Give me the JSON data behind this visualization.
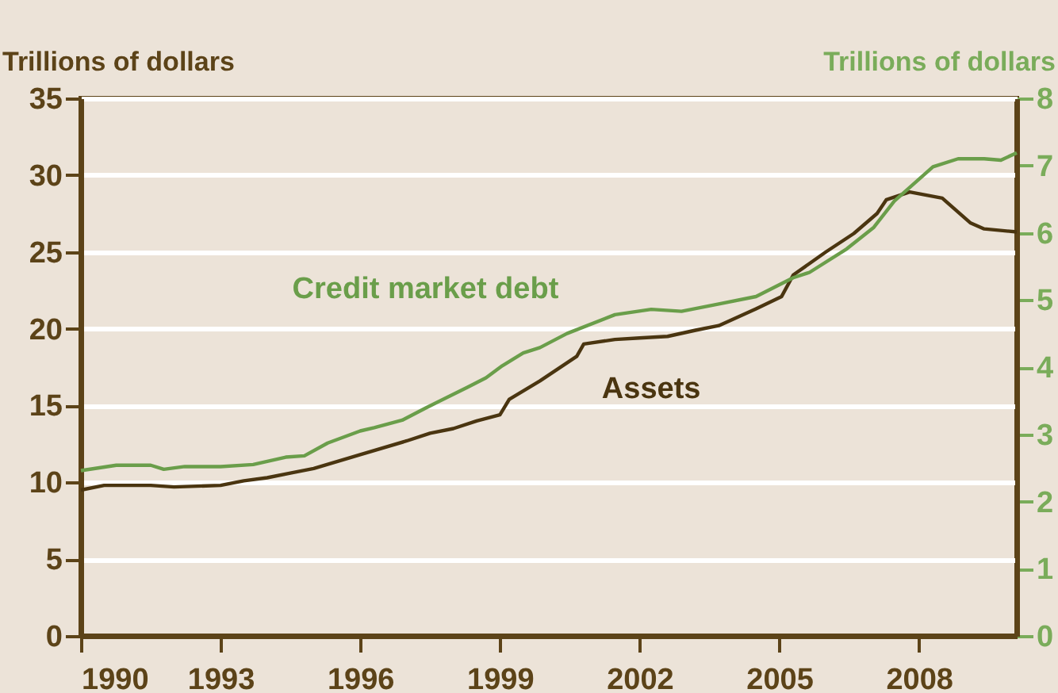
{
  "chart_data": {
    "type": "line",
    "ylabel": "Trillions of dollars",
    "y2label": "Trillions of dollars",
    "xlim": [
      1990,
      2010.1
    ],
    "xticks": [
      1990,
      1993,
      1996,
      1999,
      2002,
      2005,
      2008
    ],
    "ylim": [
      0,
      35
    ],
    "yticks": [
      0,
      5,
      10,
      15,
      20,
      25,
      30,
      35
    ],
    "y2lim": [
      0,
      8
    ],
    "y2ticks": [
      0,
      1,
      2,
      3,
      4,
      5,
      6,
      7,
      8
    ],
    "grid": "y",
    "series": [
      {
        "name": "Assets",
        "color": "#4a3510",
        "axis": "y",
        "x": [
          1990,
          1990.5,
          1991.5,
          1992,
          1993,
          1993.5,
          1994,
          1994.5,
          1995,
          1996,
          1997,
          1997.5,
          1998,
          1998.5,
          1999,
          1999.2,
          1999.86,
          2000.65,
          2000.8,
          2001.47,
          2002,
          2002.6,
          2003.2,
          2003.7,
          2004.5,
          2005.05,
          2005.3,
          2006,
          2006.6,
          2007.1,
          2007.3,
          2007.8,
          2008.5,
          2009.1,
          2009.4,
          2010.1
        ],
        "values": [
          9.5,
          9.8,
          9.8,
          9.7,
          9.8,
          10.1,
          10.3,
          10.6,
          10.9,
          11.8,
          12.7,
          13.2,
          13.5,
          14.0,
          14.4,
          15.4,
          16.6,
          18.2,
          19.0,
          19.3,
          19.4,
          19.5,
          19.9,
          20.2,
          21.3,
          22.1,
          23.5,
          25.0,
          26.2,
          27.5,
          28.4,
          28.9,
          28.5,
          26.9,
          26.5,
          26.3
        ]
      },
      {
        "name": "Credit market debt",
        "color": "#6a9e4a",
        "axis": "y2",
        "x": [
          1990,
          1990.76,
          1991.5,
          1991.78,
          1992.23,
          1993,
          1993.7,
          1994.4,
          1994.8,
          1995.3,
          1996,
          1996.3,
          1996.9,
          1997.4,
          1998.3,
          1998.7,
          1999.05,
          1999.5,
          1999.86,
          2000.44,
          2001.47,
          2002.25,
          2002.9,
          2003.7,
          2004.5,
          2005.3,
          2005.65,
          2006.45,
          2007.03,
          2007.47,
          2008.3,
          2008.84,
          2009.4,
          2009.76,
          2010.1
        ],
        "values": [
          2.46,
          2.54,
          2.54,
          2.48,
          2.52,
          2.52,
          2.55,
          2.66,
          2.68,
          2.87,
          3.05,
          3.1,
          3.21,
          3.39,
          3.7,
          3.84,
          4.02,
          4.21,
          4.29,
          4.5,
          4.78,
          4.86,
          4.83,
          4.94,
          5.05,
          5.33,
          5.41,
          5.76,
          6.08,
          6.47,
          6.98,
          7.1,
          7.1,
          7.08,
          7.19
        ]
      }
    ]
  }
}
